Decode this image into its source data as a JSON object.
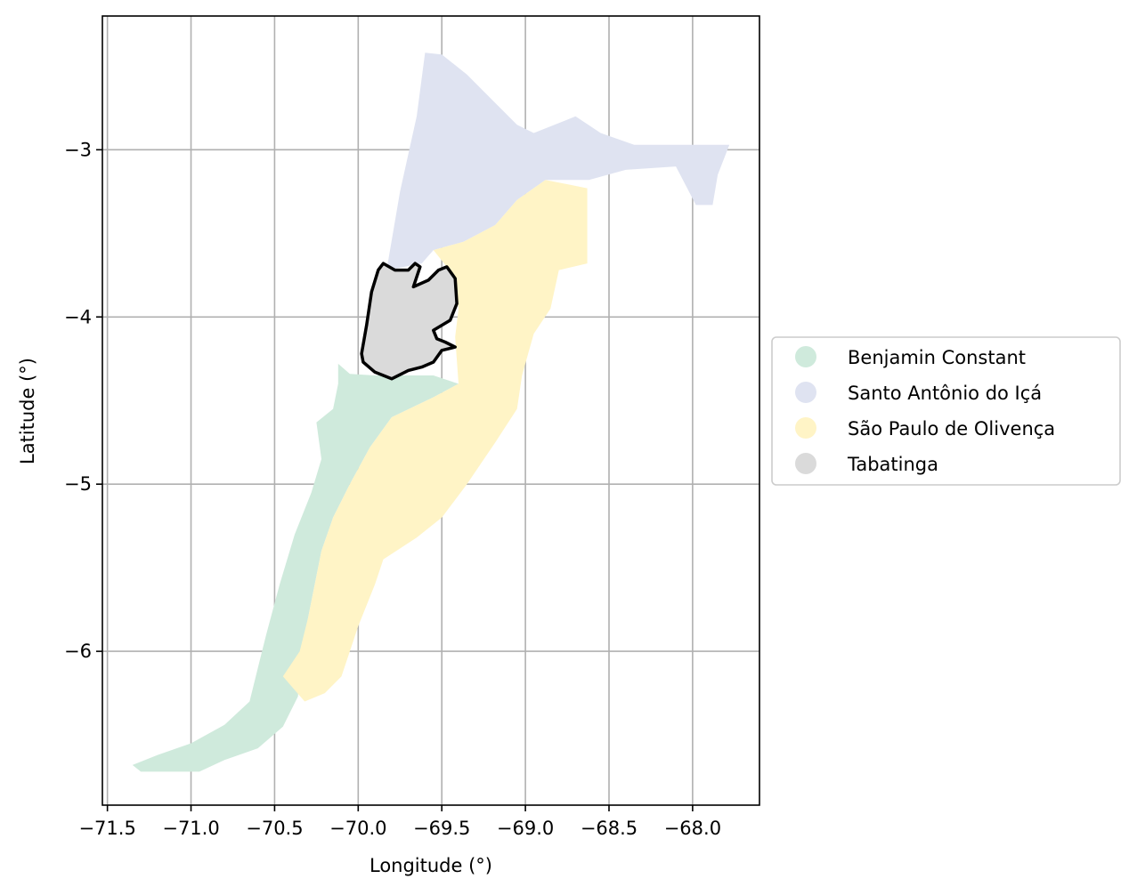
{
  "chart_data": {
    "type": "choropleth-map",
    "xlabel": "Longitude (°)",
    "ylabel": "Latitude (°)",
    "xlim": [
      -71.53,
      -67.6
    ],
    "ylim": [
      -6.92,
      -2.2
    ],
    "x_ticks": [
      -71.5,
      -71.0,
      -70.5,
      -70.0,
      -69.5,
      -69.0,
      -68.5,
      -68.0
    ],
    "x_tick_labels": [
      "−71.5",
      "−71.0",
      "−70.5",
      "−70.0",
      "−69.5",
      "−69.0",
      "−68.5",
      "−68.0"
    ],
    "y_ticks": [
      -3,
      -4,
      -5,
      -6
    ],
    "y_tick_labels": [
      "−3",
      "−4",
      "−5",
      "−6"
    ],
    "grid": true,
    "legend_position": "right",
    "highlighted_region": "Tabatinga",
    "regions": [
      {
        "name": "Benjamin Constant",
        "color": "#cfeadc",
        "outline": false,
        "polygon": [
          [
            -70.12,
            -4.28
          ],
          [
            -70.05,
            -4.34
          ],
          [
            -69.9,
            -4.35
          ],
          [
            -69.75,
            -4.35
          ],
          [
            -69.55,
            -4.35
          ],
          [
            -69.4,
            -4.4
          ],
          [
            -69.55,
            -4.48
          ],
          [
            -69.8,
            -4.6
          ],
          [
            -69.93,
            -4.78
          ],
          [
            -70.05,
            -5.0
          ],
          [
            -70.15,
            -5.2
          ],
          [
            -70.22,
            -5.4
          ],
          [
            -70.26,
            -5.6
          ],
          [
            -70.3,
            -5.8
          ],
          [
            -70.35,
            -6.05
          ],
          [
            -70.36,
            -6.27
          ],
          [
            -70.45,
            -6.45
          ],
          [
            -70.6,
            -6.58
          ],
          [
            -70.8,
            -6.65
          ],
          [
            -70.95,
            -6.72
          ],
          [
            -71.1,
            -6.72
          ],
          [
            -71.3,
            -6.72
          ],
          [
            -71.35,
            -6.68
          ],
          [
            -71.2,
            -6.62
          ],
          [
            -71.0,
            -6.55
          ],
          [
            -70.8,
            -6.44
          ],
          [
            -70.65,
            -6.3
          ],
          [
            -70.6,
            -6.1
          ],
          [
            -70.55,
            -5.9
          ],
          [
            -70.47,
            -5.6
          ],
          [
            -70.38,
            -5.3
          ],
          [
            -70.28,
            -5.05
          ],
          [
            -70.22,
            -4.85
          ],
          [
            -70.25,
            -4.63
          ],
          [
            -70.15,
            -4.55
          ],
          [
            -70.12,
            -4.4
          ]
        ]
      },
      {
        "name": "Santo Antônio do Içá",
        "color": "#dfe3f1",
        "outline": false,
        "polygon": [
          [
            -69.83,
            -3.72
          ],
          [
            -69.75,
            -3.25
          ],
          [
            -69.65,
            -2.8
          ],
          [
            -69.6,
            -2.42
          ],
          [
            -69.5,
            -2.43
          ],
          [
            -69.35,
            -2.55
          ],
          [
            -69.2,
            -2.7
          ],
          [
            -69.05,
            -2.85
          ],
          [
            -68.95,
            -2.9
          ],
          [
            -68.7,
            -2.8
          ],
          [
            -68.55,
            -2.9
          ],
          [
            -68.35,
            -2.97
          ],
          [
            -68.1,
            -2.97
          ],
          [
            -67.78,
            -2.97
          ],
          [
            -67.85,
            -3.15
          ],
          [
            -67.88,
            -3.33
          ],
          [
            -67.98,
            -3.33
          ],
          [
            -68.1,
            -3.1
          ],
          [
            -68.4,
            -3.12
          ],
          [
            -68.62,
            -3.18
          ],
          [
            -68.88,
            -3.18
          ],
          [
            -69.05,
            -3.3
          ],
          [
            -69.18,
            -3.45
          ],
          [
            -69.37,
            -3.55
          ],
          [
            -69.55,
            -3.6
          ],
          [
            -69.62,
            -3.68
          ]
        ]
      },
      {
        "name": "São Paulo de Olivença",
        "color": "#fff4c6",
        "outline": false,
        "polygon": [
          [
            -69.55,
            -3.6
          ],
          [
            -69.37,
            -3.55
          ],
          [
            -69.18,
            -3.45
          ],
          [
            -69.05,
            -3.3
          ],
          [
            -68.88,
            -3.18
          ],
          [
            -68.63,
            -3.23
          ],
          [
            -68.63,
            -3.68
          ],
          [
            -68.8,
            -3.72
          ],
          [
            -68.85,
            -3.95
          ],
          [
            -68.95,
            -4.1
          ],
          [
            -69.02,
            -4.35
          ],
          [
            -69.05,
            -4.55
          ],
          [
            -69.18,
            -4.75
          ],
          [
            -69.35,
            -5.0
          ],
          [
            -69.5,
            -5.2
          ],
          [
            -69.65,
            -5.32
          ],
          [
            -69.85,
            -5.45
          ],
          [
            -69.9,
            -5.6
          ],
          [
            -70.0,
            -5.85
          ],
          [
            -70.05,
            -6.0
          ],
          [
            -70.1,
            -6.15
          ],
          [
            -70.2,
            -6.25
          ],
          [
            -70.32,
            -6.3
          ],
          [
            -70.45,
            -6.15
          ],
          [
            -70.35,
            -6.0
          ],
          [
            -70.3,
            -5.8
          ],
          [
            -70.26,
            -5.6
          ],
          [
            -70.22,
            -5.4
          ],
          [
            -70.15,
            -5.2
          ],
          [
            -70.05,
            -5.0
          ],
          [
            -69.93,
            -4.78
          ],
          [
            -69.8,
            -4.6
          ],
          [
            -69.55,
            -4.48
          ],
          [
            -69.4,
            -4.4
          ],
          [
            -69.42,
            -4.12
          ],
          [
            -69.4,
            -3.95
          ],
          [
            -69.42,
            -3.8
          ],
          [
            -69.47,
            -3.7
          ]
        ]
      },
      {
        "name": "Tabatinga",
        "color": "#dadada",
        "outline": true,
        "polygon": [
          [
            -69.85,
            -3.68
          ],
          [
            -69.78,
            -3.72
          ],
          [
            -69.7,
            -3.72
          ],
          [
            -69.66,
            -3.68
          ],
          [
            -69.63,
            -3.7
          ],
          [
            -69.67,
            -3.82
          ],
          [
            -69.58,
            -3.78
          ],
          [
            -69.52,
            -3.72
          ],
          [
            -69.47,
            -3.7
          ],
          [
            -69.42,
            -3.77
          ],
          [
            -69.41,
            -3.92
          ],
          [
            -69.45,
            -4.02
          ],
          [
            -69.55,
            -4.08
          ],
          [
            -69.53,
            -4.13
          ],
          [
            -69.48,
            -4.15
          ],
          [
            -69.42,
            -4.18
          ],
          [
            -69.5,
            -4.2
          ],
          [
            -69.55,
            -4.27
          ],
          [
            -69.62,
            -4.3
          ],
          [
            -69.7,
            -4.32
          ],
          [
            -69.8,
            -4.37
          ],
          [
            -69.9,
            -4.33
          ],
          [
            -69.97,
            -4.27
          ],
          [
            -69.98,
            -4.22
          ],
          [
            -69.95,
            -4.05
          ],
          [
            -69.92,
            -3.85
          ],
          [
            -69.88,
            -3.72
          ]
        ]
      }
    ],
    "legend": [
      {
        "label": "Benjamin Constant",
        "color": "#cfeadc"
      },
      {
        "label": "Santo Antônio do Içá",
        "color": "#dfe3f1"
      },
      {
        "label": "São Paulo de Olivença",
        "color": "#fff4c6"
      },
      {
        "label": "Tabatinga",
        "color": "#dadada"
      }
    ]
  }
}
